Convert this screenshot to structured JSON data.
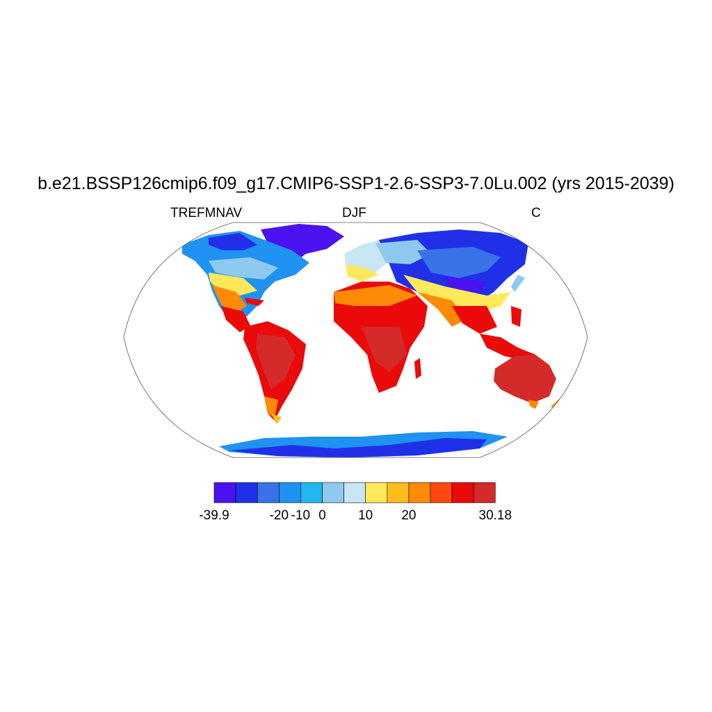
{
  "title": "b.e21.BSSP126cmip6.f09_g17.CMIP6-SSP1-2.6-SSP3-7.0Lu.002 (yrs 2015-2039)",
  "subtitle_left": "TREFMNAV",
  "subtitle_center": "DJF",
  "subtitle_right": "C",
  "colorbar": {
    "colors": [
      "#4a12f0",
      "#2030e8",
      "#3a72e8",
      "#1f92f2",
      "#1fb8f0",
      "#8ecaf0",
      "#c8e6f4",
      "#ffe95a",
      "#ffbd1a",
      "#ff8a05",
      "#ff4810",
      "#ea0a0a",
      "#d42a2a"
    ],
    "labels": [
      "-39.9",
      "-20",
      "-10",
      "0",
      "10",
      "20",
      "30.18"
    ],
    "label_boxes": [
      0,
      3,
      4,
      5,
      7,
      9,
      13
    ]
  },
  "chart_data": {
    "type": "heatmap",
    "variable": "TREFMNAV",
    "season": "DJF",
    "units": "C",
    "projection": "Robinson",
    "range": [
      -39.9,
      30.18
    ],
    "levels": [
      -39.9,
      -20,
      -10,
      0,
      10,
      20,
      30.18
    ]
  }
}
